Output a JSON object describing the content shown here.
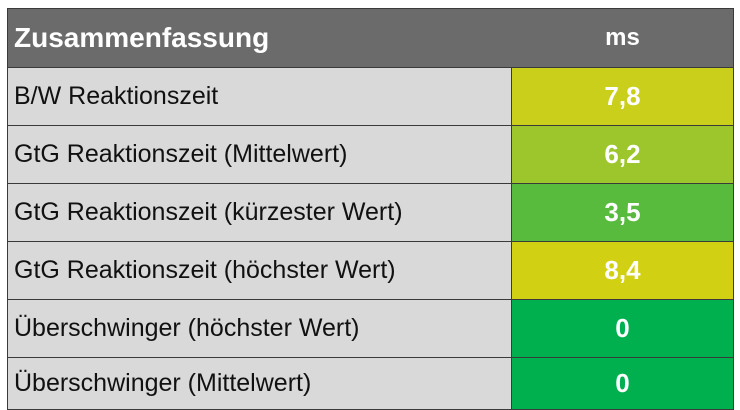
{
  "header": {
    "title": "Zusammenfassung",
    "unit": "ms"
  },
  "rows": [
    {
      "label": "B/W Reaktionszeit",
      "value": "7,8",
      "color": "#c9cf1a"
    },
    {
      "label": "GtG Reaktionszeit (Mittelwert)",
      "value": "6,2",
      "color": "#9cc62b"
    },
    {
      "label": "GtG Reaktionszeit (kürzester Wert)",
      "value": "3,5",
      "color": "#58bb3e"
    },
    {
      "label": "GtG Reaktionszeit (höchster Wert)",
      "value": "8,4",
      "color": "#d2d012"
    },
    {
      "label": "Überschwinger (höchster Wert)",
      "value": "0",
      "color": "#00b04f"
    },
    {
      "label": "Überschwinger (Mittelwert)",
      "value": "0",
      "color": "#00b04f"
    }
  ]
}
